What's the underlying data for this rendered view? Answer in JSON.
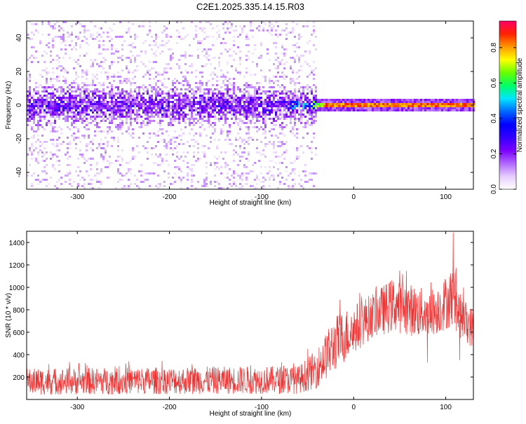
{
  "title": "C2E1.2025.335.14.15.R03",
  "chart_data": [
    {
      "type": "heatmap",
      "name": "spectrogram",
      "xlabel": "Height of straight line (km)",
      "ylabel": "Frequency (Hz)",
      "xlim": [
        -355,
        130
      ],
      "ylim": [
        -50,
        50
      ],
      "xticks": [
        -300,
        -200,
        -100,
        0,
        100
      ],
      "yticks": [
        -40,
        -20,
        0,
        20,
        40
      ],
      "xtick_labels": [
        "-300",
        "-200",
        "-100",
        "0",
        "100"
      ],
      "ytick_labels": [
        "-40",
        "-20",
        "0",
        "20",
        "40"
      ],
      "ridge": [
        {
          "x": -350,
          "amp": 0.15
        },
        {
          "x": -80,
          "amp": 0.22
        },
        {
          "x": -70,
          "amp": 0.45
        },
        {
          "x": -50,
          "amp": 0.55
        },
        {
          "x": -35,
          "amp": 0.75
        },
        {
          "x": -30,
          "amp": 0.9
        },
        {
          "x": 130,
          "amp": 0.9
        }
      ],
      "noise_cutoff_x": -40,
      "colorbar": {
        "label": "Normalized spectral amplitude",
        "range": [
          0,
          0.95
        ],
        "ticks": [
          0,
          0.2,
          0.4,
          0.6,
          0.8
        ],
        "tick_labels": [
          "0.0",
          "0.2",
          "0.4",
          "0.6",
          "0.8"
        ]
      },
      "colormap": [
        "#ffffff",
        "#e6ccff",
        "#b266ff",
        "#7a00ff",
        "#3300ff",
        "#0000ff",
        "#0066ff",
        "#00e5ff",
        "#00ff66",
        "#66ff00",
        "#ffff00",
        "#ff9900",
        "#ff2200",
        "#ff0066"
      ]
    },
    {
      "type": "line",
      "name": "snr",
      "xlabel": "Height of straight line (km)",
      "ylabel": "SNR (10 * v/v)",
      "xlim": [
        -355,
        130
      ],
      "ylim": [
        0,
        1500
      ],
      "xticks": [
        -300,
        -200,
        -100,
        0,
        100
      ],
      "yticks": [
        200,
        400,
        600,
        800,
        1000,
        1200,
        1400
      ],
      "xtick_labels": [
        "-300",
        "-200",
        "-100",
        "0",
        "100"
      ],
      "ytick_labels": [
        "200",
        "400",
        "600",
        "800",
        "1000",
        "1200",
        "1400"
      ],
      "series": [
        {
          "color": "#ee3333",
          "envelope": [
            {
              "x": -355,
              "low": 40,
              "high": 280
            },
            {
              "x": -60,
              "low": 50,
              "high": 300
            },
            {
              "x": -40,
              "low": 100,
              "high": 450
            },
            {
              "x": -20,
              "low": 250,
              "high": 750
            },
            {
              "x": 0,
              "low": 400,
              "high": 850
            },
            {
              "x": 20,
              "low": 550,
              "high": 950
            },
            {
              "x": 45,
              "low": 600,
              "high": 1100
            },
            {
              "x": 70,
              "low": 550,
              "high": 1000
            },
            {
              "x": 90,
              "low": 580,
              "high": 1000
            },
            {
              "x": 108,
              "low": 650,
              "high": 1200
            },
            {
              "x": 115,
              "low": 550,
              "high": 950
            },
            {
              "x": 130,
              "low": 450,
              "high": 800
            }
          ],
          "spikes": [
            {
              "x": 108,
              "y": 1490
            },
            {
              "x": 50,
              "y": 1150
            },
            {
              "x": 80,
              "y": 330
            },
            {
              "x": 115,
              "y": 350
            }
          ]
        }
      ]
    }
  ]
}
